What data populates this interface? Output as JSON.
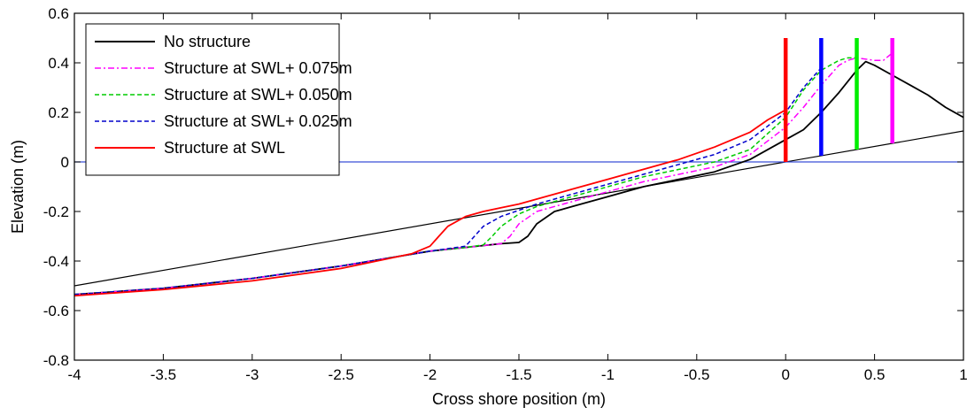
{
  "chart_data": {
    "type": "line",
    "title": "",
    "xlabel": "Cross shore position (m)",
    "ylabel": "Elevation (m)",
    "xlim": [
      -4,
      1
    ],
    "ylim": [
      -0.8,
      0.6
    ],
    "xticks": [
      "-4",
      "-3.5",
      "-3",
      "-2.5",
      "-2",
      "-1.5",
      "-1",
      "-0.5",
      "0",
      "0.5",
      "1"
    ],
    "yticks": [
      "-0.8",
      "-0.6",
      "-0.4",
      "-0.2",
      "0",
      "0.2",
      "0.4",
      "0.6"
    ],
    "grid": false,
    "legend_position": "top-left",
    "series": [
      {
        "name": "No structure",
        "color": "#000000",
        "dash": "solid",
        "x": [
          -4.0,
          -3.5,
          -3.0,
          -2.5,
          -2.0,
          -1.8,
          -1.6,
          -1.5,
          -1.45,
          -1.4,
          -1.3,
          -1.2,
          -1.0,
          -0.8,
          -0.6,
          -0.4,
          -0.2,
          0.0,
          0.1,
          0.2,
          0.3,
          0.4,
          0.45,
          0.5,
          0.6,
          0.7,
          0.8,
          0.9,
          1.0
        ],
        "y": [
          -0.535,
          -0.51,
          -0.47,
          -0.42,
          -0.36,
          -0.345,
          -0.33,
          -0.325,
          -0.3,
          -0.25,
          -0.2,
          -0.18,
          -0.14,
          -0.1,
          -0.07,
          -0.04,
          0.01,
          0.09,
          0.13,
          0.2,
          0.28,
          0.37,
          0.405,
          0.39,
          0.35,
          0.31,
          0.27,
          0.22,
          0.18
        ]
      },
      {
        "name": "Structure at SWL+ 0.075m",
        "color": "#ff00ff",
        "dash": "dashdot",
        "x": [
          -4.0,
          -3.5,
          -3.0,
          -2.5,
          -2.0,
          -1.8,
          -1.6,
          -1.55,
          -1.5,
          -1.4,
          -1.2,
          -1.0,
          -0.8,
          -0.6,
          -0.4,
          -0.2,
          0.0,
          0.1,
          0.2,
          0.3,
          0.35,
          0.4,
          0.5,
          0.55,
          0.6
        ],
        "y": [
          -0.535,
          -0.51,
          -0.47,
          -0.42,
          -0.36,
          -0.345,
          -0.33,
          -0.3,
          -0.25,
          -0.2,
          -0.16,
          -0.12,
          -0.08,
          -0.05,
          -0.02,
          0.03,
          0.14,
          0.22,
          0.31,
          0.39,
          0.41,
          0.42,
          0.41,
          0.41,
          0.44
        ]
      },
      {
        "name": "Structure at SWL+ 0.050m",
        "color": "#00cc00",
        "dash": "dash",
        "x": [
          -4.0,
          -3.5,
          -3.0,
          -2.5,
          -2.0,
          -1.8,
          -1.7,
          -1.65,
          -1.6,
          -1.5,
          -1.4,
          -1.2,
          -1.0,
          -0.8,
          -0.6,
          -0.4,
          -0.2,
          0.0,
          0.1,
          0.2,
          0.3,
          0.35,
          0.4
        ],
        "y": [
          -0.535,
          -0.51,
          -0.47,
          -0.42,
          -0.36,
          -0.345,
          -0.335,
          -0.3,
          -0.26,
          -0.21,
          -0.18,
          -0.14,
          -0.1,
          -0.06,
          -0.03,
          0.0,
          0.05,
          0.18,
          0.29,
          0.37,
          0.41,
          0.42,
          0.42
        ]
      },
      {
        "name": "Structure at SWL+ 0.025m",
        "color": "#0000cc",
        "dash": "dash",
        "x": [
          -4.0,
          -3.5,
          -3.0,
          -2.5,
          -2.0,
          -1.9,
          -1.8,
          -1.75,
          -1.7,
          -1.6,
          -1.4,
          -1.2,
          -1.0,
          -0.8,
          -0.6,
          -0.4,
          -0.2,
          0.0,
          0.1,
          0.2
        ],
        "y": [
          -0.535,
          -0.51,
          -0.47,
          -0.42,
          -0.36,
          -0.35,
          -0.34,
          -0.3,
          -0.26,
          -0.22,
          -0.17,
          -0.13,
          -0.09,
          -0.05,
          -0.01,
          0.03,
          0.09,
          0.2,
          0.3,
          0.38
        ]
      },
      {
        "name": "Structure at SWL",
        "color": "#ff0000",
        "dash": "solid",
        "x": [
          -4.0,
          -3.5,
          -3.0,
          -2.5,
          -2.1,
          -2.0,
          -1.95,
          -1.9,
          -1.8,
          -1.7,
          -1.6,
          -1.5,
          -1.4,
          -1.2,
          -1.0,
          -0.8,
          -0.6,
          -0.4,
          -0.2,
          -0.1,
          0.0
        ],
        "y": [
          -0.54,
          -0.515,
          -0.48,
          -0.43,
          -0.37,
          -0.34,
          -0.3,
          -0.26,
          -0.22,
          -0.2,
          -0.185,
          -0.17,
          -0.15,
          -0.11,
          -0.07,
          -0.03,
          0.01,
          0.06,
          0.12,
          0.17,
          0.21
        ]
      }
    ],
    "reference_lines": [
      {
        "name": "beach-slope-line",
        "color": "#000000",
        "x": [
          -4,
          1
        ],
        "y": [
          -0.5,
          0.125
        ]
      },
      {
        "name": "swl-line",
        "color": "#3b4fd6",
        "x": [
          -4,
          1
        ],
        "y": [
          0,
          0
        ]
      }
    ],
    "structures": [
      {
        "name": "red-structure",
        "color": "#ff0000",
        "x": 0.0,
        "y_bottom": 0.0,
        "y_top": 0.5
      },
      {
        "name": "blue-structure",
        "color": "#0000ff",
        "x": 0.2,
        "y_bottom": 0.025,
        "y_top": 0.5
      },
      {
        "name": "green-structure",
        "color": "#00ee00",
        "x": 0.4,
        "y_bottom": 0.05,
        "y_top": 0.5
      },
      {
        "name": "magenta-structure",
        "color": "#ff00ff",
        "x": 0.6,
        "y_bottom": 0.075,
        "y_top": 0.5
      }
    ]
  }
}
